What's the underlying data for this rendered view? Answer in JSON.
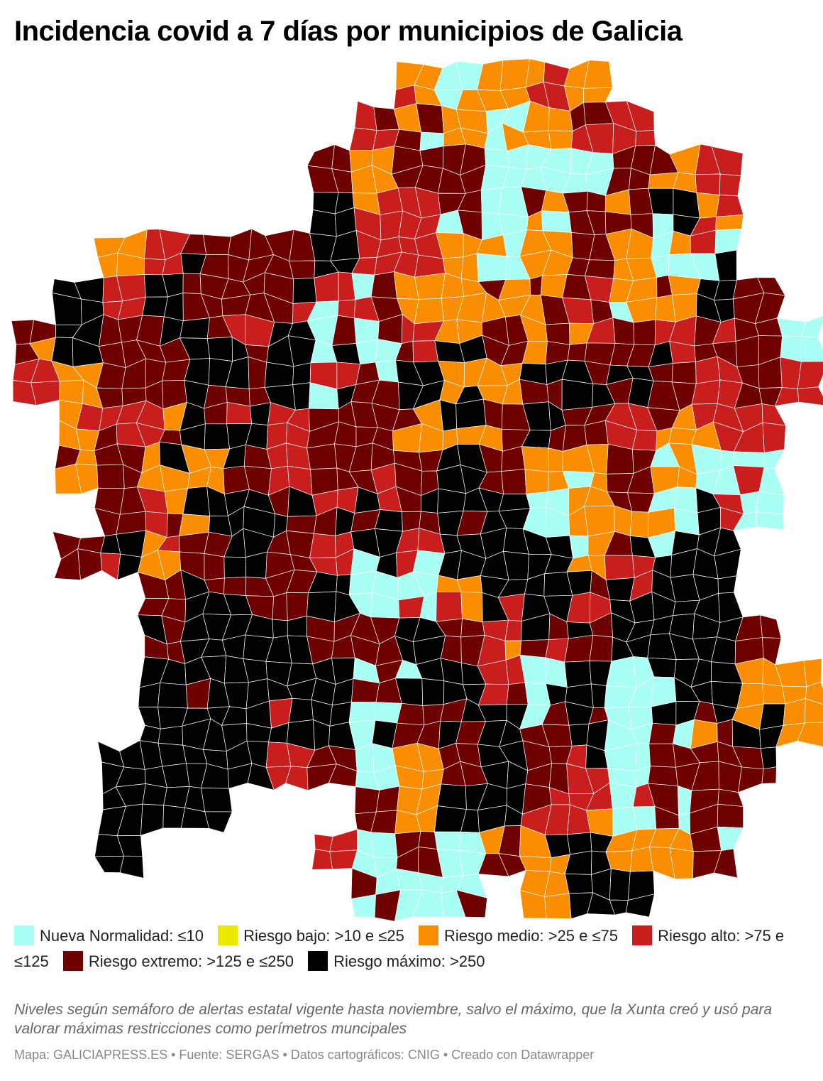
{
  "title": "Incidencia covid a 7 días por municipios de Galicia",
  "legend": [
    {
      "label": "Nueva Normalidad: ≤10",
      "color": "#a9fff3"
    },
    {
      "label": "Riesgo bajo: >10 e ≤25",
      "color": "#eaea00"
    },
    {
      "label": "Riesgo medio: >25 e ≤75",
      "color": "#fa8e00"
    },
    {
      "label": "Riesgo alto: >75 e ≤125",
      "color": "#c81e1e"
    },
    {
      "label": "Riesgo extremo: >125 e ≤250",
      "color": "#6e0000"
    },
    {
      "label": "Riesgo máximo: >250",
      "color": "#000000"
    }
  ],
  "note": "Niveles según semáforo de alertas estatal vigente hasta noviembre, salvo el máximo, que la Xunta creó y usó para valorar máximas restricciones como perímetros muncipales",
  "credit": "Mapa: GALICIAPRESS.ES • Fuente: SERGAS • Datos cartográficos: CNIG • Creado con Datawrapper"
}
